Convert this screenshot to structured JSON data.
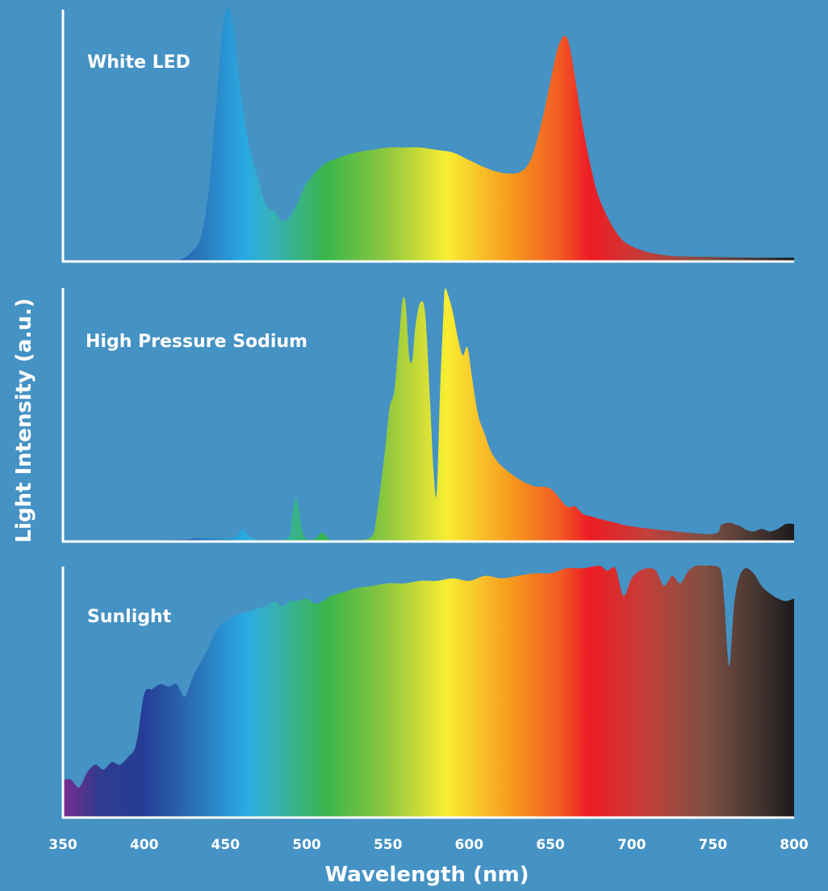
{
  "chart_data": {
    "type": "area",
    "xlabel": "Wavelength (nm)",
    "ylabel": "Light Intensity (a.u.)",
    "xlim": [
      350,
      800
    ],
    "ylim": [
      0,
      1
    ],
    "x_ticks": [
      "350",
      "400",
      "450",
      "500",
      "550",
      "600",
      "650",
      "700",
      "750",
      "800"
    ],
    "grid": false,
    "fill": "visible-spectrum gradient (violet through blue, green, yellow, orange, red to near-black infrared)",
    "panels": [
      {
        "label": "White LED",
        "series": [
          {
            "x": [
              420,
              428,
              435,
              440,
              444,
              448,
              450,
              452,
              455,
              458,
              462,
              466,
              470,
              475,
              480,
              485,
              490,
              495,
              500,
              510,
              520,
              530,
              540,
              550,
              560,
              570,
              580,
              590,
              600,
              610,
              620,
              630,
              636,
              640,
              645,
              650,
              654,
              657,
              659,
              661,
              663,
              666,
              670,
              675,
              680,
              690,
              700,
              720,
              750,
              780,
              800
            ],
            "y": [
              0.0,
              0.03,
              0.1,
              0.3,
              0.6,
              0.9,
              0.98,
              1.0,
              0.92,
              0.74,
              0.54,
              0.42,
              0.33,
              0.22,
              0.2,
              0.16,
              0.18,
              0.24,
              0.31,
              0.38,
              0.41,
              0.43,
              0.44,
              0.45,
              0.45,
              0.45,
              0.44,
              0.43,
              0.4,
              0.37,
              0.35,
              0.35,
              0.38,
              0.44,
              0.56,
              0.71,
              0.83,
              0.88,
              0.89,
              0.87,
              0.81,
              0.69,
              0.53,
              0.37,
              0.25,
              0.12,
              0.06,
              0.025,
              0.018,
              0.015,
              0.015
            ]
          }
        ]
      },
      {
        "label": "High Pressure Sodium",
        "series": [
          {
            "x": [
              350,
              420,
              430,
              440,
              450,
              455,
              458,
              460,
              462,
              465,
              470,
              480,
              489,
              491,
              493,
              495,
              497,
              500,
              505,
              508,
              510,
              512,
              515,
              520,
              530,
              540,
              543,
              548,
              551,
              554,
              557,
              559,
              561,
              563,
              565,
              567,
              570,
              573,
              576,
              578,
              580,
              582,
              584,
              585,
              587,
              590,
              593,
              596,
              599,
              602,
              605,
              607,
              610,
              612,
              615,
              620,
              630,
              640,
              650,
              660,
              665,
              670,
              675,
              680,
              690,
              700,
              720,
              750,
              755,
              760,
              763,
              767,
              770,
              775,
              780,
              785,
              790,
              795,
              800
            ],
            "y": [
              0.0,
              0.006,
              0.012,
              0.014,
              0.01,
              0.015,
              0.03,
              0.05,
              0.04,
              0.02,
              0.005,
              0.004,
              0.02,
              0.1,
              0.17,
              0.14,
              0.05,
              0.01,
              0.01,
              0.03,
              0.035,
              0.02,
              0.005,
              0.002,
              0.005,
              0.02,
              0.1,
              0.35,
              0.53,
              0.6,
              0.82,
              0.96,
              0.94,
              0.74,
              0.72,
              0.86,
              0.95,
              0.9,
              0.55,
              0.29,
              0.19,
              0.58,
              0.88,
              1.0,
              0.98,
              0.91,
              0.81,
              0.74,
              0.77,
              0.64,
              0.52,
              0.47,
              0.42,
              0.38,
              0.34,
              0.3,
              0.25,
              0.22,
              0.21,
              0.14,
              0.14,
              0.11,
              0.1,
              0.09,
              0.075,
              0.06,
              0.045,
              0.03,
              0.065,
              0.075,
              0.07,
              0.06,
              0.048,
              0.04,
              0.05,
              0.04,
              0.05,
              0.07,
              0.07
            ]
          }
        ]
      },
      {
        "label": "Sunlight",
        "series": [
          {
            "x": [
              350,
              355,
              360,
              365,
              370,
              375,
              380,
              385,
              390,
              395,
              400,
              405,
              410,
              415,
              420,
              425,
              430,
              435,
              440,
              445,
              450,
              455,
              460,
              465,
              470,
              475,
              480,
              485,
              490,
              495,
              500,
              505,
              510,
              515,
              520,
              525,
              530,
              540,
              550,
              560,
              570,
              580,
              590,
              600,
              610,
              620,
              630,
              640,
              650,
              660,
              670,
              680,
              685,
              690,
              695,
              700,
              705,
              710,
              715,
              720,
              725,
              730,
              735,
              740,
              745,
              750,
              755,
              757,
              760,
              763,
              766,
              770,
              775,
              780,
              785,
              790,
              795,
              800
            ],
            "y": [
              0.15,
              0.15,
              0.12,
              0.18,
              0.21,
              0.19,
              0.22,
              0.21,
              0.24,
              0.29,
              0.49,
              0.51,
              0.53,
              0.52,
              0.53,
              0.48,
              0.56,
              0.62,
              0.68,
              0.75,
              0.78,
              0.8,
              0.81,
              0.82,
              0.83,
              0.84,
              0.86,
              0.84,
              0.86,
              0.86,
              0.87,
              0.85,
              0.86,
              0.88,
              0.89,
              0.9,
              0.91,
              0.92,
              0.93,
              0.93,
              0.94,
              0.94,
              0.95,
              0.94,
              0.96,
              0.95,
              0.96,
              0.97,
              0.97,
              0.99,
              0.99,
              1.0,
              0.98,
              0.99,
              0.88,
              0.95,
              0.98,
              0.99,
              0.98,
              0.92,
              0.96,
              0.93,
              0.98,
              1.0,
              1.0,
              1.0,
              0.98,
              0.86,
              0.6,
              0.84,
              0.95,
              0.99,
              0.97,
              0.92,
              0.89,
              0.87,
              0.86,
              0.87
            ]
          }
        ]
      }
    ]
  }
}
